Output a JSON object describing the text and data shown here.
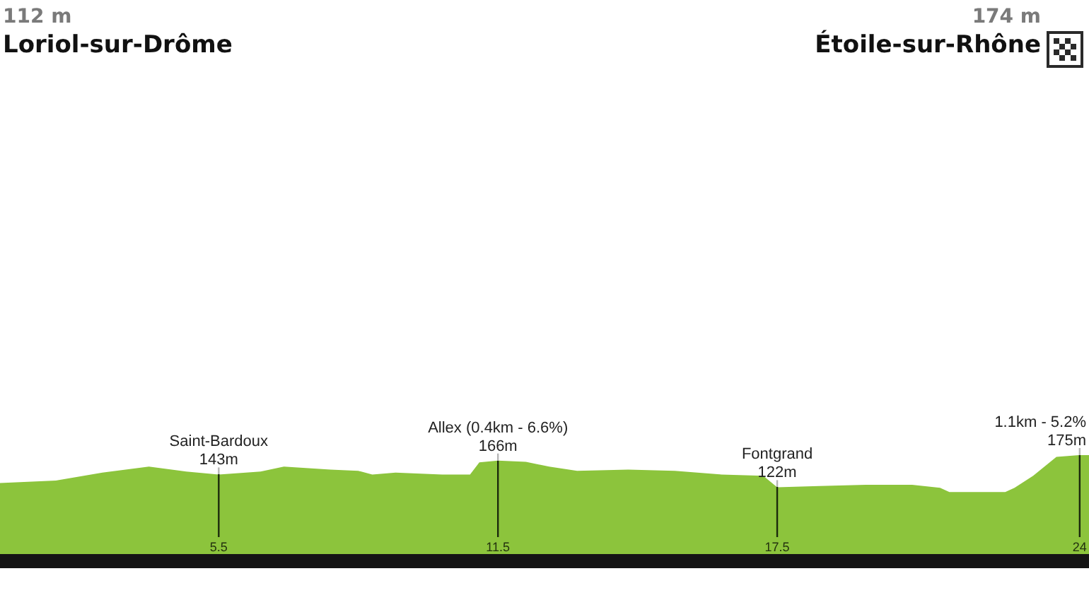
{
  "chart_data": {
    "type": "area",
    "x": [
      0.8,
      2.0,
      3.0,
      4.0,
      4.8,
      5.5,
      6.4,
      6.9,
      7.9,
      8.5,
      8.8,
      9.3,
      10.3,
      10.9,
      11.1,
      11.5,
      12.1,
      12.6,
      13.2,
      14.3,
      15.3,
      16.3,
      17.2,
      17.5,
      18.4,
      19.4,
      20.4,
      21.0,
      21.2,
      22.4,
      22.6,
      23.0,
      23.5,
      24.0,
      24.2
    ],
    "values": [
      129,
      133,
      146,
      156,
      148,
      143,
      148,
      156,
      151,
      149,
      143,
      146,
      143,
      143,
      163,
      166,
      164,
      156,
      149,
      151,
      149,
      143,
      141,
      122,
      124,
      126,
      126,
      121,
      114,
      114,
      121,
      141,
      172,
      175,
      175
    ],
    "value_labels": [
      null,
      null,
      null,
      null,
      null,
      "143m",
      null,
      null,
      null,
      null,
      null,
      null,
      null,
      null,
      null,
      "166m",
      null,
      null,
      null,
      null,
      null,
      null,
      null,
      "122m",
      null,
      null,
      null,
      null,
      null,
      null,
      null,
      null,
      null,
      "175m",
      null
    ],
    "color": "#8cc43c",
    "xlim": [
      0.8,
      24.2
    ],
    "xticks": [
      5.5,
      11.5,
      17.5,
      24
    ],
    "ylim": [
      0,
      175
    ],
    "tick_labels": "x",
    "marker": "none",
    "ref_lines": [
      {
        "axis": "x",
        "value": 5.5,
        "label": "Saint-Bardoux"
      },
      {
        "axis": "x",
        "value": 11.5,
        "label": "Allex (0.4km - 6.6%)"
      },
      {
        "axis": "x",
        "value": 17.5,
        "label": "Fontgrand"
      },
      {
        "axis": "x",
        "value": 24,
        "label": "1.1km - 5.2%"
      }
    ],
    "annotations": [
      "112 m",
      "Loriol-sur-Drôme",
      "174 m",
      "Étoile-sur-Rhône"
    ]
  }
}
